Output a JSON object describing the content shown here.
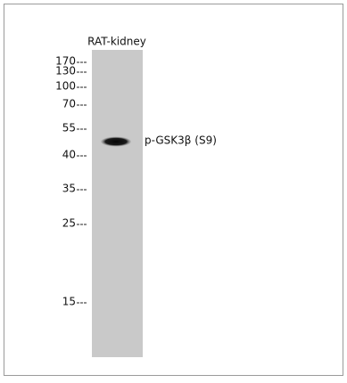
{
  "lane_label": "RAT-kidney",
  "markers": [
    "170",
    "130",
    "100",
    "70",
    "55",
    "40",
    "35",
    "25",
    "15"
  ],
  "band_label": "p-GSK3β (S9)"
}
